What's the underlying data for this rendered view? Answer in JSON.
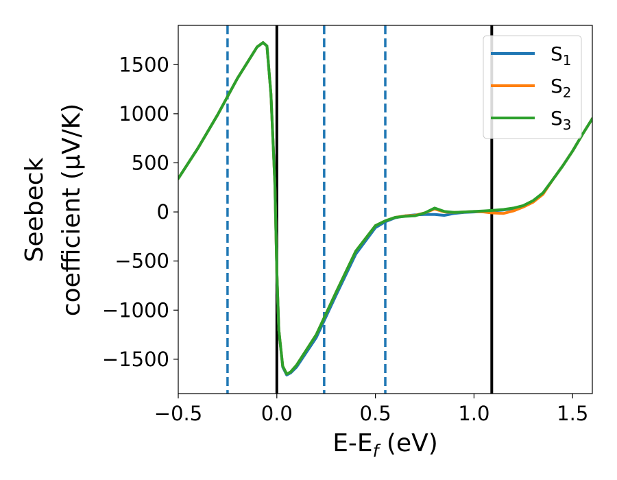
{
  "chart_data": {
    "type": "line",
    "xlabel": "E-E",
    "xlabel_sub": "f",
    "xlabel_unit": " (eV)",
    "ylabel_line1": "Seebeck",
    "ylabel_line2": "coefficient  (μV/K)",
    "xlim": [
      -0.5,
      1.6
    ],
    "ylim": [
      -1850,
      1900
    ],
    "x_ticks": [
      -0.5,
      0.0,
      0.5,
      1.0,
      1.5
    ],
    "x_tick_labels": [
      "−0.5",
      "0.0",
      "0.5",
      "1.0",
      "1.5"
    ],
    "y_ticks": [
      -1500,
      -1000,
      -500,
      0,
      500,
      1000,
      1500
    ],
    "y_tick_labels": [
      "−1500",
      "−1000",
      "−500",
      "0",
      "500",
      "1000",
      "1500"
    ],
    "grid": false,
    "legend_position": "top-right",
    "vertical_lines": [
      {
        "x": -0.25,
        "style": "dashed",
        "color": "#1f77b4"
      },
      {
        "x": 0.0,
        "style": "solid",
        "color": "#000000"
      },
      {
        "x": 0.24,
        "style": "dashed",
        "color": "#1f77b4"
      },
      {
        "x": 0.55,
        "style": "dashed",
        "color": "#1f77b4"
      },
      {
        "x": 1.09,
        "style": "solid",
        "color": "#000000"
      }
    ],
    "series": [
      {
        "name": "S",
        "sub": "1",
        "color": "#1f77b4",
        "x": [
          -0.5,
          -0.4,
          -0.3,
          -0.2,
          -0.1,
          -0.07,
          -0.05,
          -0.03,
          -0.01,
          0.0,
          0.01,
          0.03,
          0.05,
          0.07,
          0.1,
          0.2,
          0.3,
          0.4,
          0.5,
          0.55,
          0.6,
          0.65,
          0.7,
          0.75,
          0.8,
          0.85,
          0.9,
          0.95,
          1.0,
          1.05,
          1.09,
          1.15,
          1.2,
          1.25,
          1.3,
          1.35,
          1.4,
          1.45,
          1.5,
          1.55,
          1.6
        ],
        "y": [
          340,
          650,
          990,
          1360,
          1680,
          1725,
          1690,
          1200,
          300,
          -600,
          -1200,
          -1580,
          -1660,
          -1640,
          -1580,
          -1280,
          -850,
          -430,
          -160,
          -100,
          -60,
          -40,
          -30,
          -25,
          -25,
          -35,
          -15,
          -5,
          0,
          5,
          10,
          20,
          35,
          60,
          110,
          190,
          330,
          470,
          620,
          790,
          950
        ]
      },
      {
        "name": "S",
        "sub": "2",
        "color": "#ff7f0e",
        "x": [
          -0.5,
          -0.4,
          -0.3,
          -0.2,
          -0.1,
          -0.07,
          -0.05,
          -0.03,
          -0.01,
          0.0,
          0.01,
          0.03,
          0.05,
          0.07,
          0.1,
          0.2,
          0.3,
          0.4,
          0.5,
          0.55,
          0.6,
          0.65,
          0.7,
          0.75,
          0.8,
          0.85,
          0.9,
          0.95,
          1.0,
          1.05,
          1.09,
          1.15,
          1.2,
          1.25,
          1.3,
          1.35,
          1.4,
          1.45,
          1.5,
          1.55,
          1.6
        ],
        "y": [
          340,
          650,
          990,
          1360,
          1680,
          1725,
          1690,
          1200,
          300,
          -600,
          -1200,
          -1570,
          -1650,
          -1630,
          -1560,
          -1250,
          -820,
          -400,
          -140,
          -90,
          -55,
          -40,
          -35,
          -10,
          30,
          0,
          -5,
          0,
          5,
          0,
          -10,
          -15,
          10,
          50,
          100,
          180,
          330,
          470,
          620,
          790,
          950
        ]
      },
      {
        "name": "S",
        "sub": "3",
        "color": "#2ca02c",
        "x": [
          -0.5,
          -0.4,
          -0.3,
          -0.2,
          -0.1,
          -0.07,
          -0.05,
          -0.03,
          -0.01,
          0.0,
          0.01,
          0.03,
          0.05,
          0.07,
          0.1,
          0.2,
          0.3,
          0.4,
          0.5,
          0.55,
          0.6,
          0.65,
          0.7,
          0.75,
          0.8,
          0.85,
          0.9,
          0.95,
          1.0,
          1.05,
          1.09,
          1.15,
          1.2,
          1.25,
          1.3,
          1.35,
          1.4,
          1.45,
          1.5,
          1.55,
          1.6
        ],
        "y": [
          340,
          650,
          990,
          1360,
          1680,
          1725,
          1690,
          1200,
          300,
          -600,
          -1200,
          -1570,
          -1650,
          -1630,
          -1560,
          -1250,
          -820,
          -400,
          -140,
          -90,
          -55,
          -45,
          -40,
          -10,
          40,
          5,
          -5,
          0,
          5,
          10,
          15,
          25,
          40,
          65,
          115,
          195,
          330,
          470,
          620,
          790,
          950
        ]
      }
    ]
  }
}
